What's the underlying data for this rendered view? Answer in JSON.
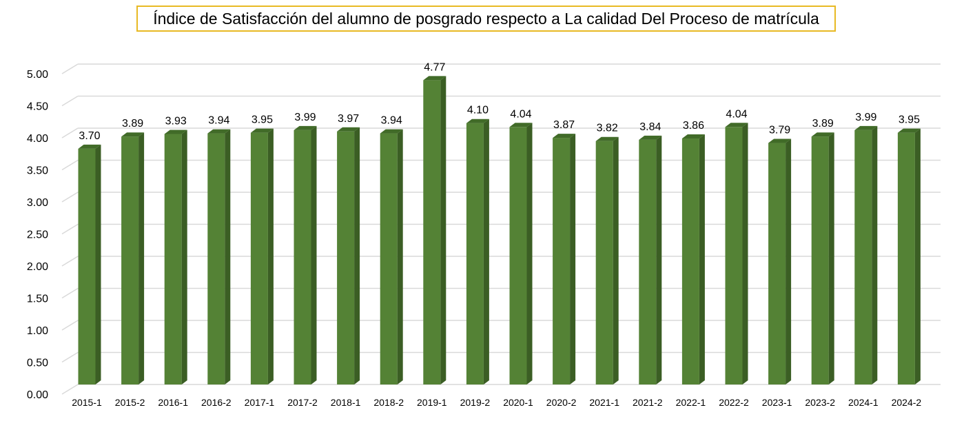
{
  "chart_data": {
    "type": "bar",
    "title": "Índice de Satisfacción del alumno de posgrado respecto a La calidad Del Proceso de matrícula",
    "categories": [
      "2015-1",
      "2015-2",
      "2016-1",
      "2016-2",
      "2017-1",
      "2017-2",
      "2018-1",
      "2018-2",
      "2019-1",
      "2019-2",
      "2020-1",
      "2020-2",
      "2021-1",
      "2021-2",
      "2022-1",
      "2022-2",
      "2023-1",
      "2023-2",
      "2024-1",
      "2024-2"
    ],
    "values": [
      3.7,
      3.89,
      3.93,
      3.94,
      3.95,
      3.99,
      3.97,
      3.94,
      4.77,
      4.1,
      4.04,
      3.87,
      3.82,
      3.84,
      3.86,
      4.04,
      3.79,
      3.89,
      3.99,
      3.95
    ],
    "value_labels": [
      "3.70",
      "3.89",
      "3.93",
      "3.94",
      "3.95",
      "3.99",
      "3.97",
      "3.94",
      "4.77",
      "4.10",
      "4.04",
      "3.87",
      "3.82",
      "3.84",
      "3.86",
      "4.04",
      "3.79",
      "3.89",
      "3.99",
      "3.95"
    ],
    "y_ticks": [
      "0.00",
      "0.50",
      "1.00",
      "1.50",
      "2.00",
      "2.50",
      "3.00",
      "3.50",
      "4.00",
      "4.50",
      "5.00"
    ],
    "ylim": [
      0,
      5
    ],
    "grid": true,
    "legend": "none",
    "colors": {
      "bar_front": "#548235",
      "bar_side": "#3b5e24",
      "bar_top": "#416b28",
      "grid": "#d9d9d9",
      "title_border": "#e8b923"
    }
  }
}
